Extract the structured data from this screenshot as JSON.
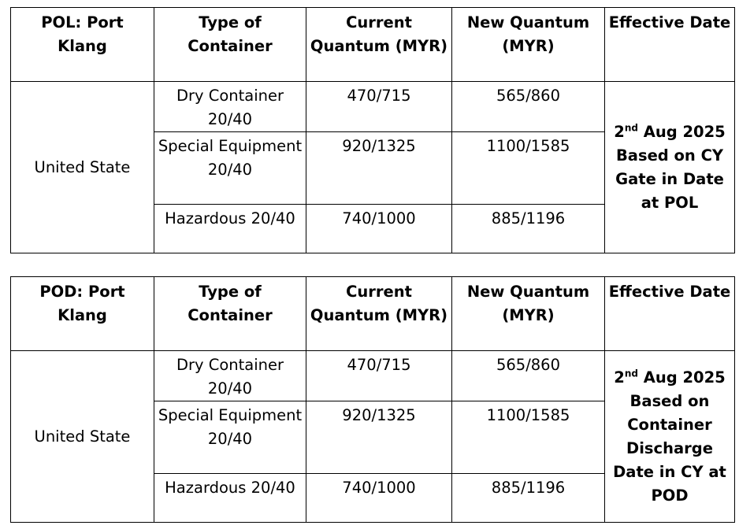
{
  "tables": [
    {
      "headers": {
        "port": "POL: Port Klang",
        "type": "Type of Container",
        "current": "Current Quantum (MYR)",
        "new": "New Quantum (MYR)",
        "effective": "Effective Date"
      },
      "destination": "United State",
      "rows": [
        {
          "type": "Dry Container 20/40",
          "current": "470/715",
          "new": "565/860"
        },
        {
          "type": "Special Equipment 20/40",
          "current": "920/1325",
          "new": "1100/1585"
        },
        {
          "type": "Hazardous 20/40",
          "current": "740/1000",
          "new": "885/1196"
        }
      ],
      "effective": {
        "day": "2",
        "ordinal": "nd",
        "rest": " Aug 2025 Based on CY Gate in Date at POL"
      }
    },
    {
      "headers": {
        "port": "POD: Port Klang",
        "type": "Type of Container",
        "current": "Current Quantum (MYR)",
        "new": "New Quantum (MYR)",
        "effective": "Effective Date"
      },
      "destination": "United State",
      "rows": [
        {
          "type": "Dry Container 20/40",
          "current": "470/715",
          "new": "565/860"
        },
        {
          "type": "Special Equipment 20/40",
          "current": "920/1325",
          "new": "1100/1585"
        },
        {
          "type": "Hazardous 20/40",
          "current": "740/1000",
          "new": "885/1196"
        }
      ],
      "effective": {
        "day": "2",
        "ordinal": "nd",
        "rest": " Aug 2025 Based on Container Discharge Date in CY at POD"
      }
    }
  ]
}
